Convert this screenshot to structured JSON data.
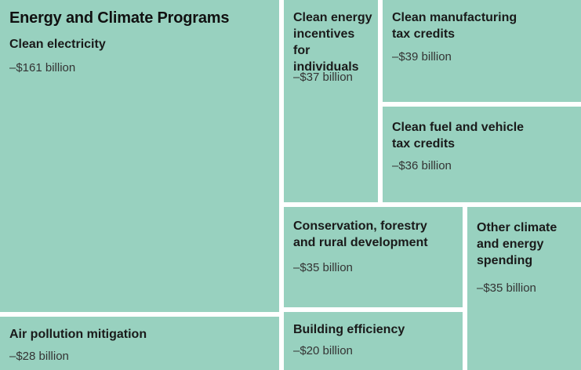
{
  "chart_data": {
    "type": "treemap",
    "title": "Energy and Climate Programs",
    "unit": "billion",
    "items": [
      {
        "label": "Clean electricity",
        "value": 161,
        "display": "–$161 billion"
      },
      {
        "label": "Clean energy incentives for individuals",
        "value": 37,
        "display": "–$37 billion"
      },
      {
        "label": "Clean manufacturing tax credits",
        "value": 39,
        "display": "–$39 billion"
      },
      {
        "label": "Clean fuel and vehicle tax credits",
        "value": 36,
        "display": "–$36 billion"
      },
      {
        "label": "Conservation, forestry and rural development",
        "value": 35,
        "display": "–$35 billion"
      },
      {
        "label": "Other climate and energy spending",
        "value": 35,
        "display": "–$35 billion"
      },
      {
        "label": "Air pollution mitigation",
        "value": 28,
        "display": "–$28 billion"
      },
      {
        "label": "Building efficiency",
        "value": 20,
        "display": "–$20 billion"
      }
    ]
  },
  "colors": {
    "tile": "#98d1bf",
    "gap": "#ffffff"
  }
}
